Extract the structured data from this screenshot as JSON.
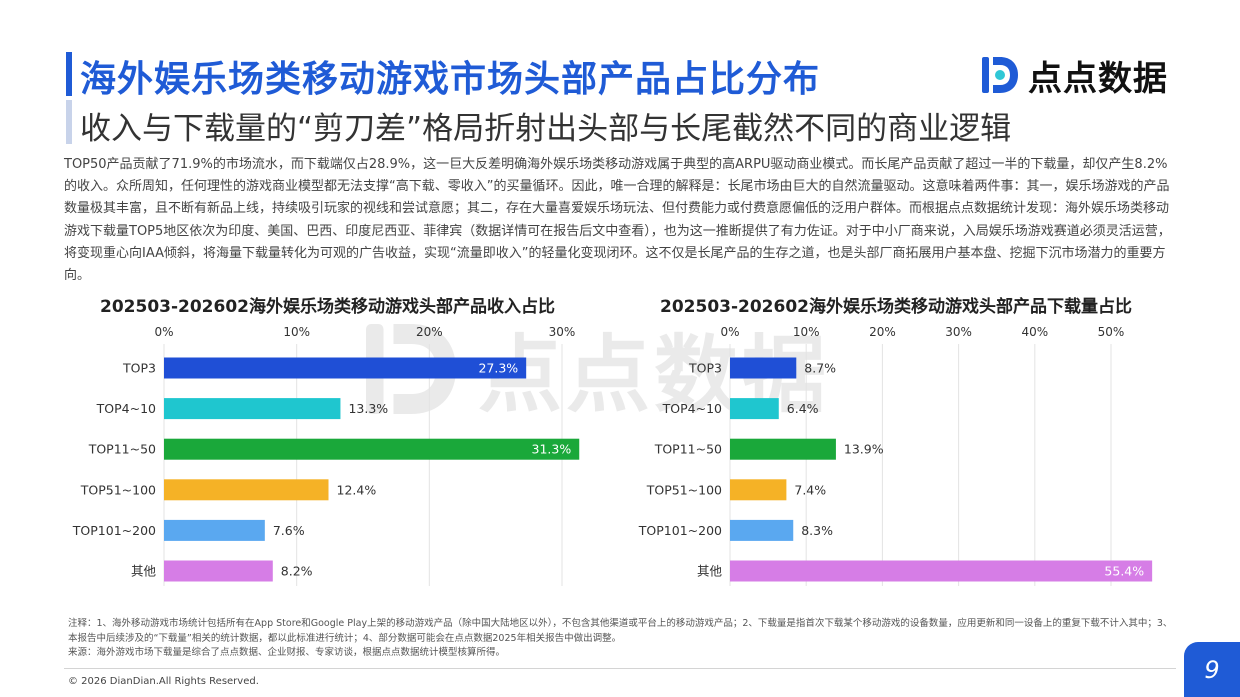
{
  "header": {
    "title": "海外娱乐场类移动游戏市场头部产品占比分布",
    "subtitle": "收入与下载量的“剪刀差”格局折射出头部与长尾截然不同的商业逻辑"
  },
  "logo": {
    "text": "点点数据",
    "icon": "diandian-logo-icon",
    "color": "#1f5bd6"
  },
  "watermark": {
    "text": "点点数据"
  },
  "body_text": "TOP50产品贡献了71.9%的市场流水，而下载端仅占28.9%，这一巨大反差明确海外娱乐场类移动游戏属于典型的高ARPU驱动商业模式。而长尾产品贡献了超过一半的下载量，却仅产生8.2%的收入。众所周知，任何理性的游戏商业模型都无法支撑“高下载、零收入”的买量循环。因此，唯一合理的解释是：长尾市场由巨大的自然流量驱动。这意味着两件事：其一，娱乐场游戏的产品数量极其丰富，且不断有新品上线，持续吸引玩家的视线和尝试意愿；其二，存在大量喜爱娱乐场玩法、但付费能力或付费意愿偏低的泛用户群体。而根据点点数据统计发现：海外娱乐场类移动游戏下载量TOP5地区依次为印度、美国、巴西、印度尼西亚、菲律宾（数据详情可在报告后文中查看），也为这一推断提供了有力佐证。对于中小厂商来说，入局娱乐场游戏赛道必须灵活运营，将变现重心向IAA倾斜，将海量下载量转化为可观的广告收益，实现“流量即收入”的轻量化变现闭环。这不仅是长尾产品的生存之道，也是头部厂商拓展用户基本盘、挖掘下沉市场潜力的重要方向。",
  "chart_data": [
    {
      "type": "bar",
      "orientation": "horizontal",
      "title": "202503-202602海外娱乐场类移动游戏头部产品收入占比",
      "categories": [
        "TOP3",
        "TOP4~10",
        "TOP11~50",
        "TOP51~100",
        "TOP101~200",
        "其他"
      ],
      "values": [
        27.3,
        13.3,
        31.3,
        12.4,
        7.6,
        8.2
      ],
      "value_labels": [
        "27.3%",
        "13.3%",
        "31.3%",
        "12.4%",
        "7.6%",
        "8.2%"
      ],
      "colors": [
        "#1f4fd6",
        "#1fc6cf",
        "#1aa83a",
        "#f5b226",
        "#5aa8f0",
        "#d67de6"
      ],
      "xlim": [
        0,
        30
      ],
      "ticks": [
        0,
        10,
        20,
        30
      ],
      "tick_labels": [
        "0%",
        "10%",
        "20%",
        "30%"
      ],
      "grid": true,
      "axis_position": "top"
    },
    {
      "type": "bar",
      "orientation": "horizontal",
      "title": "202503-202602海外娱乐场类移动游戏头部产品下载量占比",
      "categories": [
        "TOP3",
        "TOP4~10",
        "TOP11~50",
        "TOP51~100",
        "TOP101~200",
        "其他"
      ],
      "values": [
        8.7,
        6.4,
        13.9,
        7.4,
        8.3,
        55.4
      ],
      "value_labels": [
        "8.7%",
        "6.4%",
        "13.9%",
        "7.4%",
        "8.3%",
        "55.4%"
      ],
      "colors": [
        "#1f4fd6",
        "#1fc6cf",
        "#1aa83a",
        "#f5b226",
        "#5aa8f0",
        "#d67de6"
      ],
      "xlim": [
        0,
        50
      ],
      "ticks": [
        0,
        10,
        20,
        30,
        40,
        50
      ],
      "tick_labels": [
        "0%",
        "10%",
        "20%",
        "30%",
        "40%",
        "50%"
      ],
      "grid": true,
      "axis_position": "top"
    }
  ],
  "footnote": {
    "notes": "注释：1、海外移动游戏市场统计包括所有在App Store和Google Play上架的移动游戏产品（除中国大陆地区以外），不包含其他渠道或平台上的移动游戏产品；2、下载量是指首次下载某个移动游戏的设备数量，应用更新和同一设备上的重复下载不计入其中；3、本报告中后续涉及的“下载量”相关的统计数据，都以此标准进行统计；4、部分数据可能会在点点数据2025年相关报告中做出调整。",
    "source": "来源：海外游戏市场下载量是综合了点点数据、企业财报、专家访谈，根据点点数据统计模型核算所得。"
  },
  "footer": {
    "copyright": "© 2026 DianDian.All Rights Reserved.",
    "page_number": "9"
  }
}
